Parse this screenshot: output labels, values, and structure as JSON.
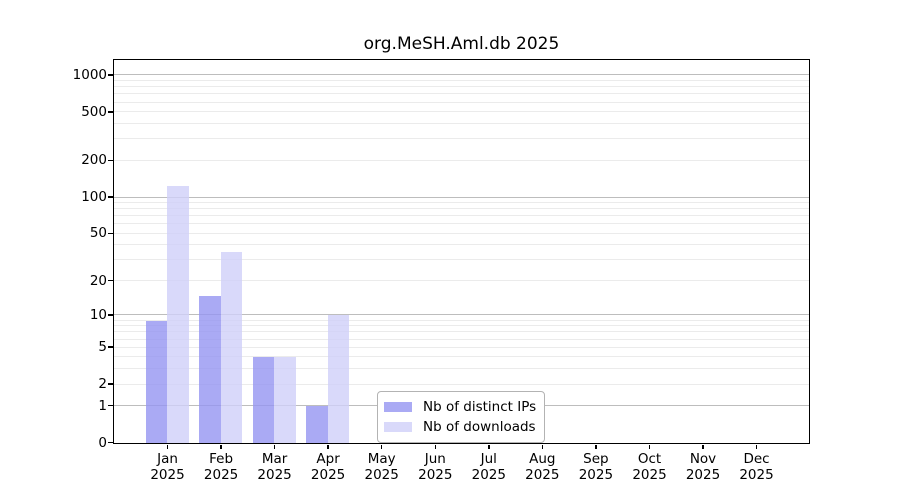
{
  "chart_data": {
    "type": "bar",
    "title": "org.MeSH.Aml.db 2025",
    "categories": [
      {
        "month": "Jan",
        "year": "2025"
      },
      {
        "month": "Feb",
        "year": "2025"
      },
      {
        "month": "Mar",
        "year": "2025"
      },
      {
        "month": "Apr",
        "year": "2025"
      },
      {
        "month": "May",
        "year": "2025"
      },
      {
        "month": "Jun",
        "year": "2025"
      },
      {
        "month": "Jul",
        "year": "2025"
      },
      {
        "month": "Aug",
        "year": "2025"
      },
      {
        "month": "Sep",
        "year": "2025"
      },
      {
        "month": "Oct",
        "year": "2025"
      },
      {
        "month": "Nov",
        "year": "2025"
      },
      {
        "month": "Dec",
        "year": "2025"
      }
    ],
    "series": [
      {
        "key": "distinct-ips",
        "name": "Nb of distinct IPs",
        "color": "#9595f1",
        "opacity": 0.8,
        "values": [
          9,
          15,
          4,
          1,
          0,
          0,
          0,
          0,
          0,
          0,
          0,
          0
        ]
      },
      {
        "key": "downloads",
        "name": "Nb of downloads",
        "color": "#d0d0f9",
        "opacity": 0.8,
        "values": [
          124,
          35,
          4,
          10,
          0,
          0,
          0,
          0,
          0,
          0,
          0,
          0
        ]
      }
    ],
    "y_axis": {
      "scale": "log10(value+1)",
      "tick_labels": [
        0,
        1,
        2,
        5,
        10,
        20,
        50,
        100,
        200,
        500,
        1000
      ],
      "major_gridlines": [
        1,
        10,
        100,
        1000
      ],
      "minor_gridlines": [
        2,
        3,
        4,
        5,
        6,
        7,
        8,
        9,
        20,
        30,
        40,
        50,
        60,
        70,
        80,
        90,
        200,
        300,
        400,
        500,
        600,
        700,
        800,
        900
      ],
      "ylim": [
        0,
        1340
      ],
      "major_grid_color": "#bdbdbd",
      "minor_grid_color": "#ebebeb"
    },
    "legend": {
      "position": "inside-bottom-center"
    }
  }
}
